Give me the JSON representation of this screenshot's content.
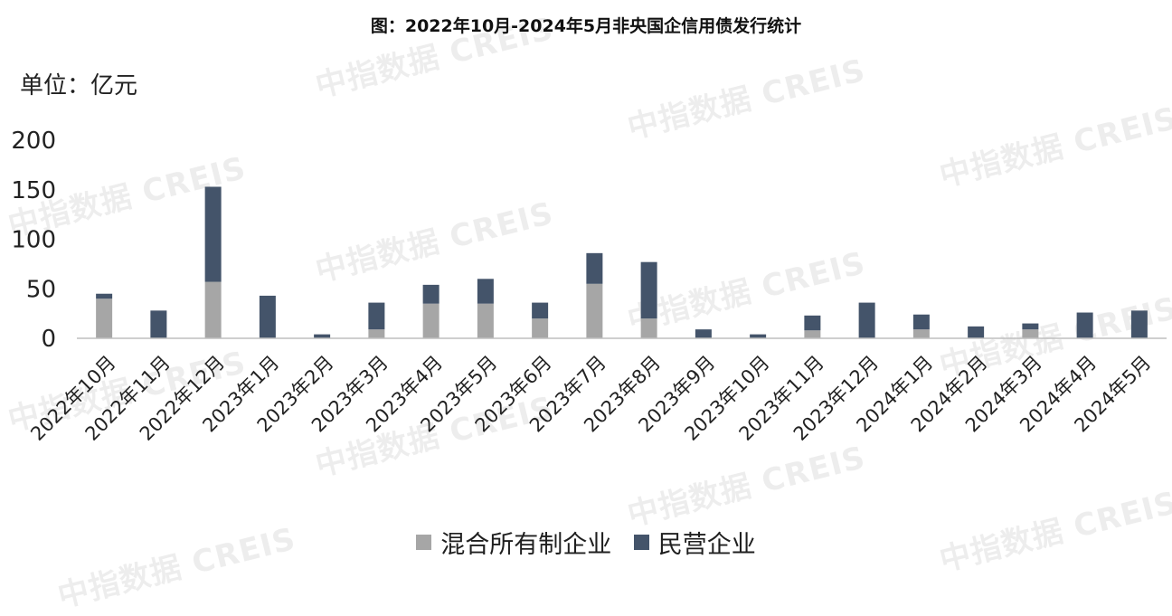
{
  "title": "图：2022年10月-2024年5月非央国企信用债发行统计",
  "unit_label": "单位：亿元",
  "watermark": "中指数据 CREIS",
  "colors": {
    "mixed": "#a6a6a6",
    "private": "#44546a",
    "axis": "#bfbfbf"
  },
  "chart_data": {
    "type": "bar",
    "stacked": true,
    "categories": [
      "2022年10月",
      "2022年11月",
      "2022年12月",
      "2023年1月",
      "2023年2月",
      "2023年3月",
      "2023年4月",
      "2023年5月",
      "2023年6月",
      "2023年7月",
      "2023年8月",
      "2023年9月",
      "2023年10月",
      "2023年11月",
      "2023年12月",
      "2024年1月",
      "2024年2月",
      "2024年3月",
      "2024年4月",
      "2024年5月"
    ],
    "series": [
      {
        "name": "混合所有制企业",
        "color": "#a6a6a6",
        "values": [
          40,
          0,
          57,
          0,
          0,
          9,
          35,
          35,
          20,
          55,
          20,
          0,
          0,
          8,
          0,
          9,
          0,
          9,
          0,
          0
        ]
      },
      {
        "name": "民营企业",
        "color": "#44546a",
        "values": [
          5,
          28,
          96,
          43,
          4,
          27,
          19,
          25,
          16,
          31,
          57,
          9,
          4,
          15,
          36,
          15,
          12,
          6,
          26,
          28
        ]
      }
    ],
    "yticks": [
      "0",
      "50",
      "100",
      "150",
      "200"
    ],
    "ylim": [
      0,
      200
    ],
    "legend_position": "bottom",
    "grid": false
  }
}
